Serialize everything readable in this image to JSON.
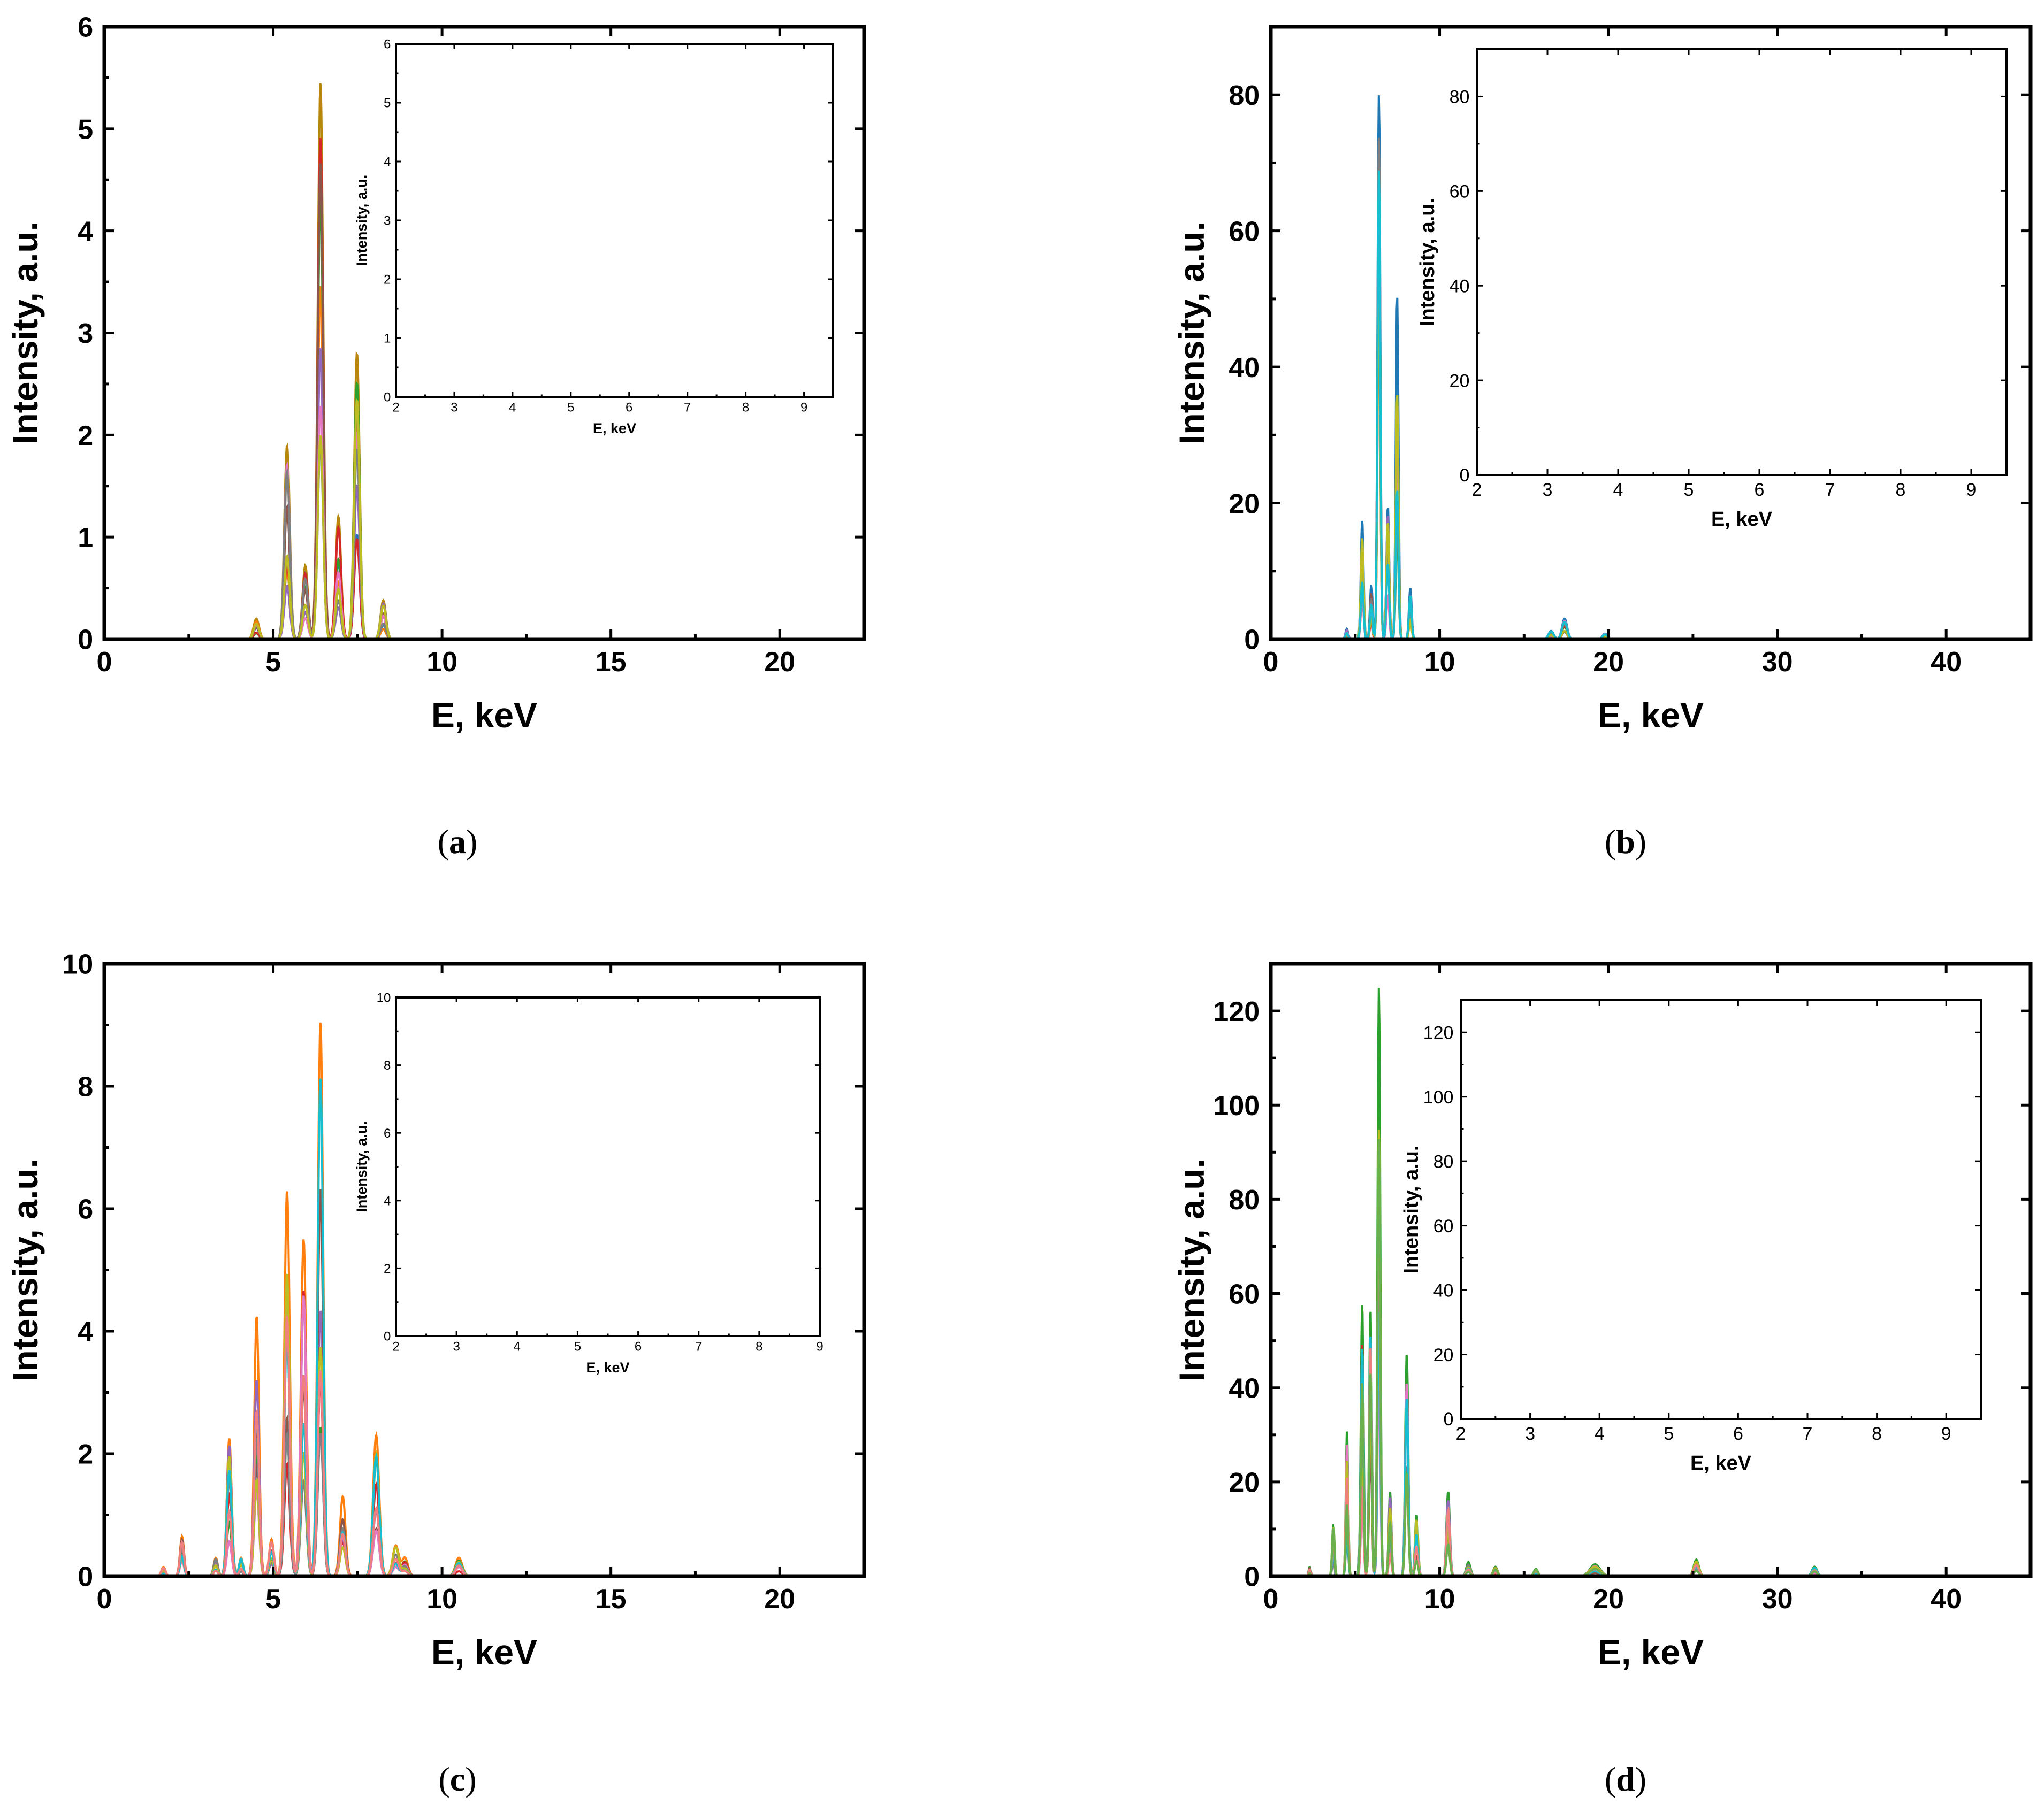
{
  "figure": {
    "panel_labels": [
      "a",
      "b",
      "c",
      "d"
    ]
  },
  "colors": [
    "#1f77b4",
    "#ff7f0e",
    "#2ca02c",
    "#d62728",
    "#9467bd",
    "#8c564b",
    "#e377c2",
    "#7f7f7f",
    "#bcbd22",
    "#17becf",
    "#f08080",
    "#6ab04c",
    "#3b6fb6",
    "#b8860b"
  ],
  "chart_data": [
    {
      "id": "a",
      "type": "line",
      "xlabel": "E, keV",
      "ylabel": "Intensity, a.u.",
      "xlim": [
        0,
        22.5
      ],
      "ylim": [
        0,
        6
      ],
      "xticks": [
        0,
        5,
        10,
        15,
        20
      ],
      "yticks": [
        0,
        1,
        2,
        3,
        4,
        5,
        6
      ],
      "peaks": [
        {
          "e": 4.5,
          "h": 0.2,
          "w": 0.08
        },
        {
          "e": 5.41,
          "h": 1.9,
          "w": 0.08
        },
        {
          "e": 5.95,
          "h": 0.72,
          "w": 0.08
        },
        {
          "e": 6.4,
          "h": 5.45,
          "w": 0.08
        },
        {
          "e": 6.93,
          "h": 1.2,
          "w": 0.08
        },
        {
          "e": 7.48,
          "h": 2.8,
          "w": 0.08
        },
        {
          "e": 8.26,
          "h": 0.38,
          "w": 0.08
        }
      ],
      "series_count": 10,
      "inset": {
        "xlabel": "E, keV",
        "ylabel": "Intensity, a.u.",
        "xlim": [
          2,
          9.5
        ],
        "ylim": [
          0,
          6
        ],
        "xticks": [
          2,
          3,
          4,
          5,
          6,
          7,
          8,
          9
        ],
        "yticks": [
          0,
          1,
          2,
          3,
          4,
          5,
          6
        ]
      }
    },
    {
      "id": "b",
      "type": "line",
      "xlabel": "E, keV",
      "ylabel": "Intensity, a.u.",
      "xlim": [
        0,
        45
      ],
      "ylim": [
        0,
        90
      ],
      "xticks": [
        0,
        10,
        20,
        30,
        40
      ],
      "yticks": [
        0,
        20,
        40,
        60,
        80
      ],
      "peaks": [
        {
          "e": 4.5,
          "h": 1.5,
          "w": 0.08
        },
        {
          "e": 5.41,
          "h": 17.5,
          "w": 0.08
        },
        {
          "e": 5.95,
          "h": 8,
          "w": 0.08
        },
        {
          "e": 6.4,
          "h": 80,
          "w": 0.08
        },
        {
          "e": 6.93,
          "h": 19.5,
          "w": 0.08
        },
        {
          "e": 7.48,
          "h": 50.5,
          "w": 0.08
        },
        {
          "e": 8.26,
          "h": 7.5,
          "w": 0.08
        },
        {
          "e": 16.6,
          "h": 1.2,
          "w": 0.15
        },
        {
          "e": 17.4,
          "h": 3,
          "w": 0.15
        },
        {
          "e": 19.8,
          "h": 0.8,
          "w": 0.15
        }
      ],
      "series_count": 10,
      "inset": {
        "xlabel": "E, keV",
        "ylabel": "Intensity, a.u.",
        "xlim": [
          2,
          9.5
        ],
        "ylim": [
          0,
          90
        ],
        "xticks": [
          2,
          3,
          4,
          5,
          6,
          7,
          8,
          9
        ],
        "yticks": [
          0,
          20,
          40,
          60,
          80
        ]
      }
    },
    {
      "id": "c",
      "type": "line",
      "xlabel": "E, keV",
      "ylabel": "Intensity, a.u.",
      "xlim": [
        0,
        22.5
      ],
      "ylim": [
        0,
        10
      ],
      "xticks": [
        0,
        5,
        10,
        15,
        20
      ],
      "yticks": [
        0,
        2,
        4,
        6,
        8,
        10
      ],
      "peaks": [
        {
          "e": 1.75,
          "h": 0.15,
          "w": 0.06
        },
        {
          "e": 2.3,
          "h": 0.65,
          "w": 0.06
        },
        {
          "e": 3.3,
          "h": 0.3,
          "w": 0.06
        },
        {
          "e": 3.7,
          "h": 2.25,
          "w": 0.07
        },
        {
          "e": 4.05,
          "h": 0.3,
          "w": 0.06
        },
        {
          "e": 4.51,
          "h": 4.25,
          "w": 0.07
        },
        {
          "e": 4.95,
          "h": 0.6,
          "w": 0.07
        },
        {
          "e": 5.41,
          "h": 6.3,
          "w": 0.08
        },
        {
          "e": 5.9,
          "h": 5.5,
          "w": 0.08
        },
        {
          "e": 6.4,
          "h": 9.05,
          "w": 0.08
        },
        {
          "e": 7.06,
          "h": 1.3,
          "w": 0.08
        },
        {
          "e": 8.05,
          "h": 2.3,
          "w": 0.09
        },
        {
          "e": 8.63,
          "h": 0.5,
          "w": 0.09
        },
        {
          "e": 8.9,
          "h": 0.3,
          "w": 0.09
        },
        {
          "e": 10.5,
          "h": 0.3,
          "w": 0.1
        }
      ],
      "series_count": 10,
      "inset": {
        "xlabel": "E, keV",
        "ylabel": "Intensity, a.u.",
        "xlim": [
          2,
          9
        ],
        "ylim": [
          0,
          10
        ],
        "xticks": [
          2,
          3,
          4,
          5,
          6,
          7,
          8,
          9
        ],
        "yticks": [
          0,
          2,
          4,
          6,
          8,
          10
        ]
      }
    },
    {
      "id": "d",
      "type": "line",
      "xlabel": "E, keV",
      "ylabel": "Intensity, a.u.",
      "xlim": [
        0,
        45
      ],
      "ylim": [
        0,
        130
      ],
      "xticks": [
        0,
        10,
        20,
        30,
        40
      ],
      "yticks": [
        0,
        20,
        40,
        60,
        80,
        100,
        120
      ],
      "peaks": [
        {
          "e": 2.3,
          "h": 2,
          "w": 0.06
        },
        {
          "e": 3.7,
          "h": 11,
          "w": 0.07
        },
        {
          "e": 4.51,
          "h": 31,
          "w": 0.07
        },
        {
          "e": 5.41,
          "h": 58,
          "w": 0.08
        },
        {
          "e": 5.9,
          "h": 57,
          "w": 0.08
        },
        {
          "e": 6.4,
          "h": 125,
          "w": 0.08
        },
        {
          "e": 7.06,
          "h": 18,
          "w": 0.08
        },
        {
          "e": 8.05,
          "h": 47.5,
          "w": 0.09
        },
        {
          "e": 8.63,
          "h": 13,
          "w": 0.09
        },
        {
          "e": 10.5,
          "h": 18,
          "w": 0.1
        },
        {
          "e": 11.7,
          "h": 3,
          "w": 0.12
        },
        {
          "e": 13.3,
          "h": 2,
          "w": 0.12
        },
        {
          "e": 15.7,
          "h": 1.5,
          "w": 0.12
        },
        {
          "e": 19.2,
          "h": 2.5,
          "w": 0.3
        },
        {
          "e": 25.2,
          "h": 3.5,
          "w": 0.15
        },
        {
          "e": 32.2,
          "h": 2,
          "w": 0.15
        }
      ],
      "series_count": 10,
      "inset": {
        "xlabel": "E, keV",
        "ylabel": "Intensity, a.u.",
        "xlim": [
          2,
          9.5
        ],
        "ylim": [
          0,
          130
        ],
        "xticks": [
          2,
          3,
          4,
          5,
          6,
          7,
          8,
          9
        ],
        "yticks": [
          0,
          20,
          40,
          60,
          80,
          100,
          120
        ]
      }
    }
  ]
}
